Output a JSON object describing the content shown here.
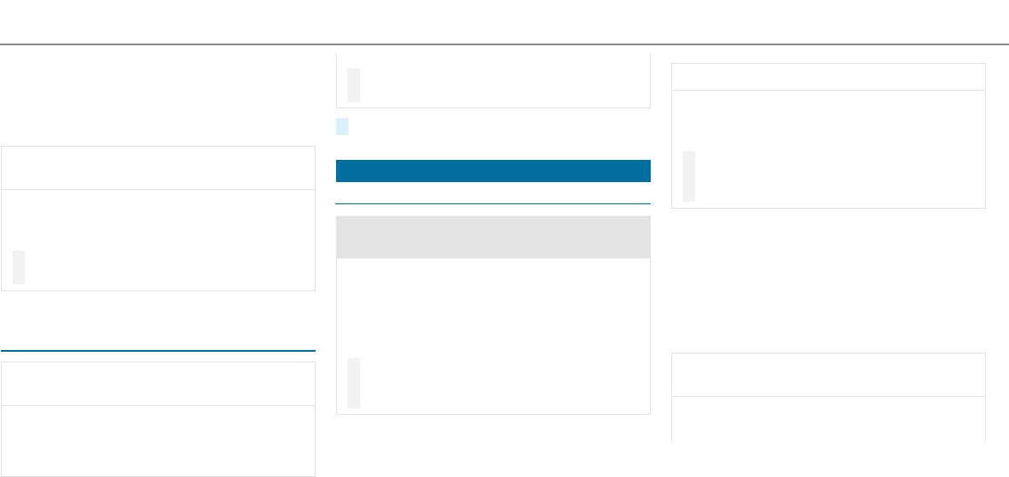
{
  "page": {
    "colors": {
      "accent": "#006e9f",
      "rule": "#8c8c8c",
      "border": "#e2e2e2",
      "header_fill": "#e3e3e3",
      "marker": "#f2f2f2",
      "highlight": "#d9f1fa"
    }
  }
}
